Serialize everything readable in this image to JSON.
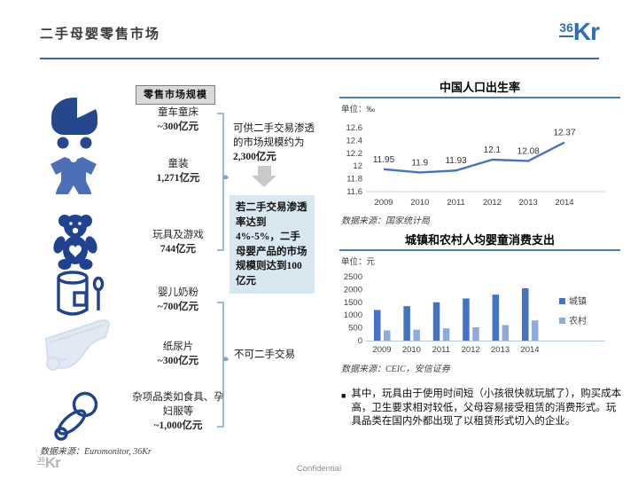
{
  "header": {
    "title": "二手母婴零售市场",
    "logo_sup": "36",
    "logo_main": "Kr"
  },
  "left_panel": {
    "header_label": "零售市场规模",
    "items": [
      {
        "icon": "pram-icon",
        "name": "童车童床",
        "value": "~300亿元"
      },
      {
        "icon": "baby-clothes-icon",
        "name": "童装",
        "value": "1,271亿元"
      },
      {
        "icon": "teddy-bear-icon",
        "name": "玩具及游戏",
        "value": "744亿元"
      },
      {
        "icon": "milk-can-icon",
        "name": "婴儿奶粉",
        "value": "~700亿元"
      },
      {
        "icon": "diaper-icon",
        "name": "纸尿片",
        "value": "~300亿元"
      },
      {
        "icon": "pacifier-icon",
        "name": "杂项品类如食具、孕妇服等",
        "value": "~1,000亿元"
      }
    ],
    "source": "数据来源：Euromonitor, 36Kr"
  },
  "middle_panel": {
    "penetration_text": "可供二手交易渗透的市场规模约为",
    "penetration_bold": "2,300亿元",
    "highlight_text": "若二手交易渗透率达到4%-5%，二手母婴产品的市场规模则达到100亿元",
    "non_tradable_label": "不可二手交易"
  },
  "chart_data": [
    {
      "type": "line",
      "title": "中国人口出生率",
      "unit": "单位：‰",
      "categories": [
        "2009",
        "2010",
        "2011",
        "2012",
        "2013",
        "2014"
      ],
      "values": [
        11.95,
        11.9,
        11.93,
        12.1,
        12.08,
        12.37
      ],
      "ylim": [
        11.6,
        12.6
      ],
      "ytick_labels": [
        "12.6",
        "12.4",
        "12.2",
        "12",
        "11.8",
        "11.6"
      ],
      "line_color": "#4472C4",
      "grid": false,
      "legend_position": "none",
      "source": "数据来源：国家统计局"
    },
    {
      "type": "bar",
      "title": "城镇和农村人均婴童消费支出",
      "unit": "单位：元",
      "categories": [
        "2009",
        "2010",
        "2011",
        "2012",
        "2013",
        "2014"
      ],
      "series": [
        {
          "name": "城镇",
          "color": "#4472C4",
          "values": [
            1200,
            1350,
            1500,
            1650,
            1800,
            2050
          ]
        },
        {
          "name": "农村",
          "color": "#8FAADC",
          "values": [
            400,
            430,
            480,
            520,
            610,
            790
          ]
        }
      ],
      "ylim": [
        0,
        2500
      ],
      "ytick_labels": [
        "2500",
        "2000",
        "1500",
        "1000",
        "500",
        "0"
      ],
      "grid": false,
      "legend_position": "right",
      "source": "数据来源：CEIC，安信证券"
    }
  ],
  "note": {
    "bullet": "■",
    "text": "其中，玩具由于使用时间短（小孩很快就玩腻了），购买成本高，卫生要求相对较低，父母容易接受租赁的消费形式。玩具品类在国内外都出现了以租赁形式切入的企业。"
  },
  "footer": {
    "confidential": "Confidential",
    "logo_sup": "36",
    "logo_main": "Kr"
  },
  "colors": {
    "accent_blue": "#3A67AE",
    "icon_dark_blue": "#1F4391",
    "icon_medium_blue": "#4C6FB7",
    "chart_blue": "#4472C4",
    "chart_light_blue": "#8FAADC",
    "highlight_bg": "#D9E7F1",
    "header_box_bg": "#D9D9D9",
    "bracket_blue": "#7BA3D3",
    "arrow_gray": "#C9C9C9"
  }
}
